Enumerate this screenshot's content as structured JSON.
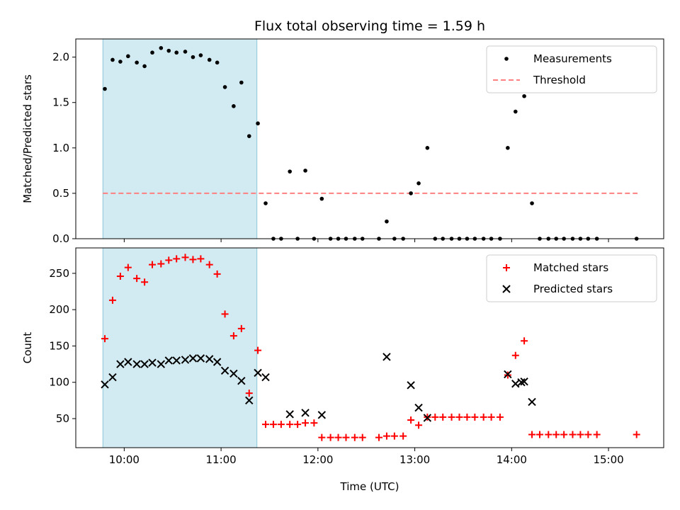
{
  "chart_data": [
    {
      "type": "scatter",
      "title": "Flux total observing time = 1.59 h",
      "xlabel": "",
      "ylabel": "Matched/Predicted stars",
      "xlim": [
        9.5,
        15.57
      ],
      "ylim": [
        0,
        2.2
      ],
      "x_ticks": [
        10,
        11,
        12,
        13,
        14,
        15
      ],
      "y_ticks": [
        0.0,
        0.5,
        1.0,
        1.5,
        2.0
      ],
      "y_tick_labels": [
        "0.0",
        "0.5",
        "1.0",
        "1.5",
        "2.0"
      ],
      "shaded_region": {
        "x_start": 9.78,
        "x_end": 11.37,
        "color": "#add8e6"
      },
      "threshold": {
        "name": "Threshold",
        "value": 0.5,
        "x_start": 9.78,
        "x_end": 15.3,
        "color": "#ff8080"
      },
      "legend": [
        "Measurements",
        "Threshold"
      ],
      "legend_position": "top-right",
      "series": [
        {
          "name": "Measurements",
          "color": "#000000",
          "marker": "dot",
          "x": [
            9.8,
            9.88,
            9.96,
            10.04,
            10.13,
            10.21,
            10.29,
            10.38,
            10.46,
            10.54,
            10.63,
            10.71,
            10.79,
            10.88,
            10.96,
            11.04,
            11.13,
            11.21,
            11.29,
            11.38,
            11.46,
            11.54,
            11.62,
            11.71,
            11.79,
            11.87,
            11.96,
            12.04,
            12.13,
            12.21,
            12.29,
            12.38,
            12.46,
            12.63,
            12.71,
            12.79,
            12.88,
            12.96,
            13.04,
            13.13,
            13.21,
            13.29,
            13.38,
            13.46,
            13.54,
            13.62,
            13.71,
            13.79,
            13.88,
            13.96,
            14.04,
            14.13,
            14.21,
            14.29,
            14.38,
            14.46,
            14.54,
            14.63,
            14.71,
            14.79,
            14.88,
            15.29
          ],
          "y": [
            1.65,
            1.97,
            1.95,
            2.01,
            1.94,
            1.9,
            2.05,
            2.1,
            2.07,
            2.05,
            2.06,
            2.0,
            2.02,
            1.97,
            1.94,
            1.67,
            1.46,
            1.72,
            1.13,
            1.27,
            0.39,
            0.0,
            0.0,
            0.74,
            0.0,
            0.75,
            0.0,
            0.44,
            0.0,
            0.0,
            0.0,
            0.0,
            0.0,
            0.0,
            0.19,
            0.0,
            0.0,
            0.5,
            0.61,
            1.0,
            0.0,
            0.0,
            0.0,
            0.0,
            0.0,
            0.0,
            0.0,
            0.0,
            0.0,
            1.0,
            1.4,
            1.57,
            0.39,
            0.0,
            0.0,
            0.0,
            0.0,
            0.0,
            0.0,
            0.0,
            0.0,
            0.0
          ]
        }
      ]
    },
    {
      "type": "scatter",
      "title": "",
      "xlabel": "Time (UTC)",
      "ylabel": "Count",
      "xlim": [
        9.5,
        15.57
      ],
      "ylim": [
        10,
        285
      ],
      "x_ticks": [
        10,
        11,
        12,
        13,
        14,
        15
      ],
      "x_tick_labels": [
        "10:00",
        "11:00",
        "12:00",
        "13:00",
        "14:00",
        "15:00"
      ],
      "y_ticks": [
        50,
        100,
        150,
        200,
        250
      ],
      "y_tick_labels": [
        "50",
        "100",
        "150",
        "200",
        "250"
      ],
      "shaded_region": {
        "x_start": 9.78,
        "x_end": 11.37,
        "color": "#add8e6"
      },
      "legend": [
        "Matched stars",
        "Predicted stars"
      ],
      "legend_position": "top-right",
      "series": [
        {
          "name": "Matched stars",
          "color": "#ff0000",
          "marker": "plus",
          "x": [
            9.8,
            9.88,
            9.96,
            10.04,
            10.13,
            10.21,
            10.29,
            10.38,
            10.46,
            10.54,
            10.63,
            10.71,
            10.79,
            10.88,
            10.96,
            11.04,
            11.13,
            11.21,
            11.29,
            11.38,
            11.46,
            11.54,
            11.62,
            11.71,
            11.79,
            11.87,
            11.96,
            12.04,
            12.13,
            12.21,
            12.29,
            12.38,
            12.46,
            12.63,
            12.71,
            12.79,
            12.88,
            12.96,
            13.04,
            13.13,
            13.21,
            13.29,
            13.38,
            13.46,
            13.54,
            13.62,
            13.71,
            13.79,
            13.88,
            13.96,
            14.04,
            14.13,
            14.21,
            14.29,
            14.38,
            14.46,
            14.54,
            14.63,
            14.71,
            14.79,
            14.88,
            15.29
          ],
          "y": [
            160,
            213,
            246,
            258,
            243,
            238,
            262,
            263,
            268,
            270,
            272,
            269,
            270,
            262,
            249,
            194,
            164,
            174,
            85,
            144,
            42,
            42,
            42,
            42,
            42,
            44,
            44,
            24,
            24,
            24,
            24,
            24,
            24,
            24,
            26,
            26,
            26,
            48,
            41,
            52,
            52,
            52,
            52,
            52,
            52,
            52,
            52,
            52,
            52,
            110,
            137,
            157,
            28,
            28,
            28,
            28,
            28,
            28,
            28,
            28,
            28,
            28
          ]
        },
        {
          "name": "Predicted stars",
          "color": "#000000",
          "marker": "x",
          "x": [
            9.8,
            9.88,
            9.96,
            10.04,
            10.13,
            10.21,
            10.29,
            10.38,
            10.46,
            10.54,
            10.63,
            10.71,
            10.79,
            10.88,
            10.96,
            11.04,
            11.13,
            11.21,
            11.29,
            11.38,
            11.46,
            11.71,
            11.87,
            12.04,
            12.71,
            12.96,
            13.04,
            13.13,
            13.96,
            14.04,
            14.1,
            14.13,
            14.21
          ],
          "y": [
            97,
            107,
            125,
            128,
            125,
            125,
            127,
            125,
            130,
            130,
            131,
            133,
            133,
            132,
            128,
            116,
            112,
            102,
            75,
            113,
            107,
            56,
            58,
            55,
            135,
            96,
            65,
            51,
            111,
            98,
            100,
            101,
            73
          ]
        }
      ]
    }
  ]
}
